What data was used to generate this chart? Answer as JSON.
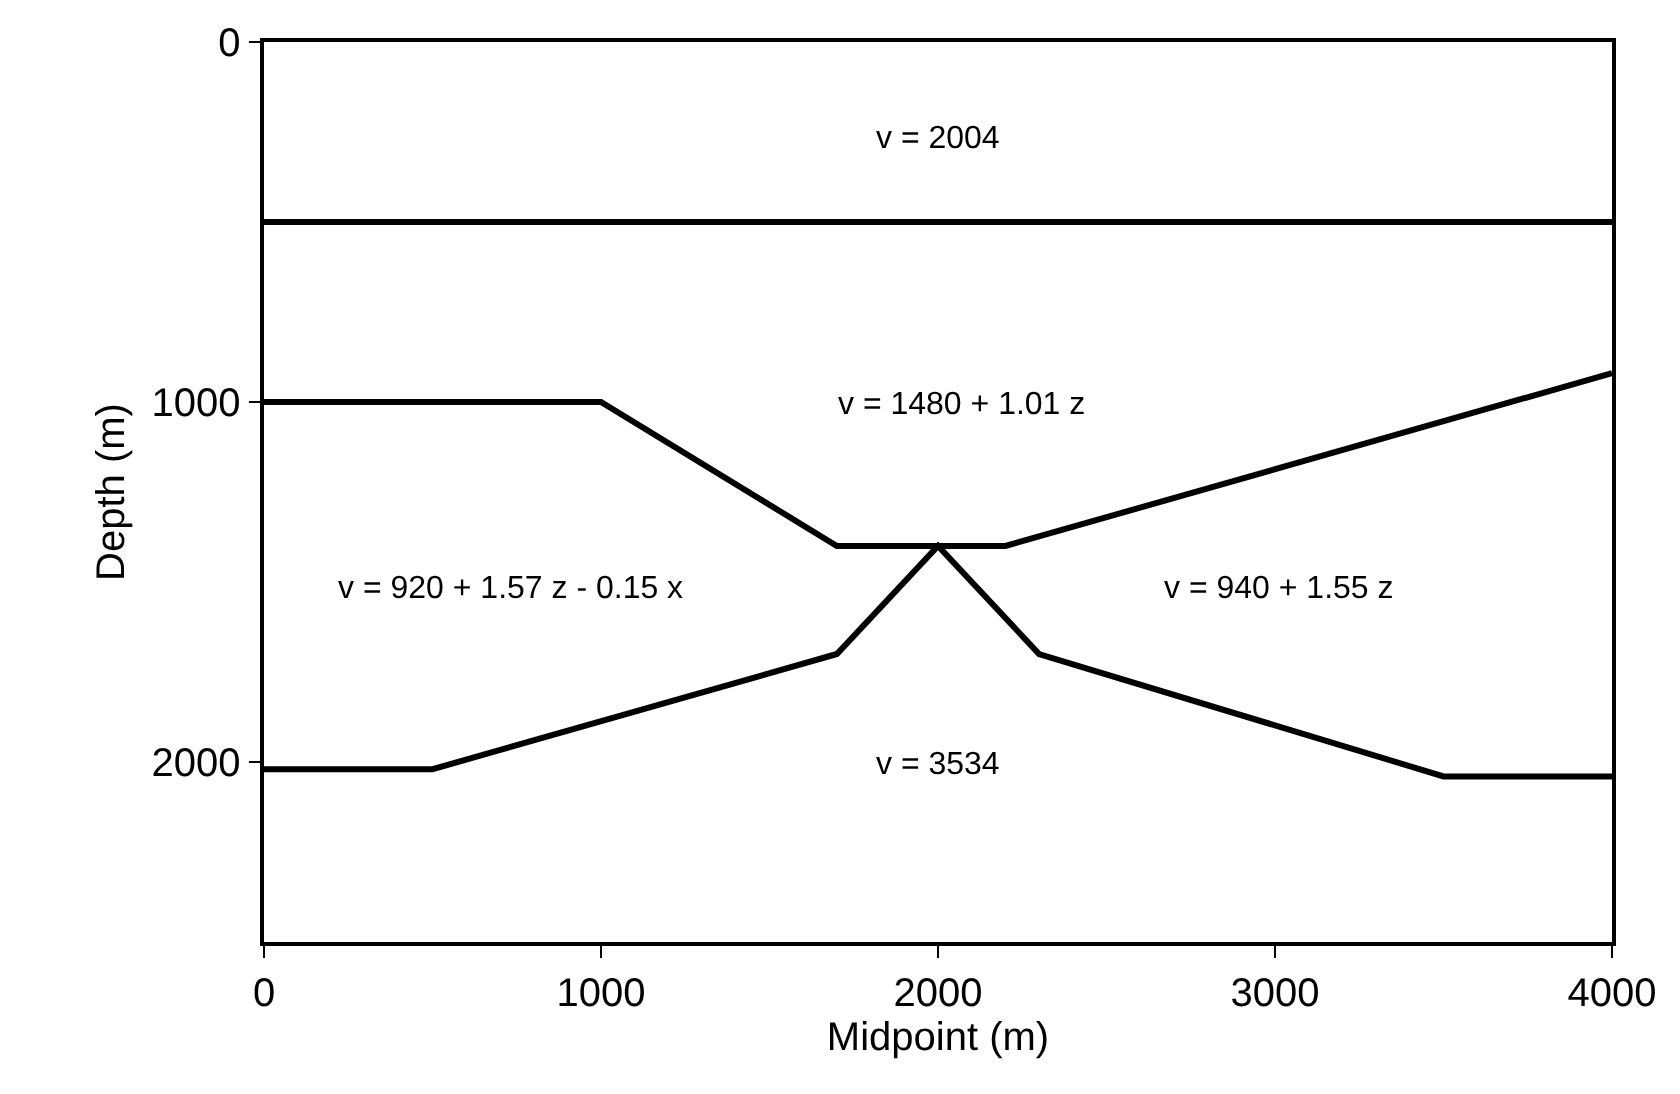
{
  "chart_data": {
    "type": "line",
    "xlabel": "Midpoint (m)",
    "ylabel": "Depth (m)",
    "xlim": [
      0,
      4000
    ],
    "xticks": [
      0,
      1000,
      2000,
      3000,
      4000
    ],
    "ylim": [
      2500,
      0
    ],
    "yticks": [
      0,
      1000,
      2000
    ],
    "grid": false,
    "marker": "none",
    "line_style": "solid",
    "series": [
      {
        "color": "#000000",
        "x": [
          0,
          4000
        ],
        "values": [
          500,
          500
        ]
      },
      {
        "color": "#000000",
        "x": [
          0,
          1000,
          1700,
          2200,
          4000
        ],
        "values": [
          1000,
          1000,
          1400,
          1400,
          920
        ]
      },
      {
        "color": "#000000",
        "x": [
          0,
          500,
          1700,
          2000,
          2300,
          3500,
          4000
        ],
        "values": [
          2020,
          2020,
          1700,
          1400,
          1700,
          2040,
          2040
        ]
      }
    ],
    "annotations": [
      "v = 2004",
      "v = 1480 + 1.01 z",
      "v = 920 + 1.57 z - 0.15 x",
      "v = 940 + 1.55 z",
      "v = 3534"
    ]
  }
}
